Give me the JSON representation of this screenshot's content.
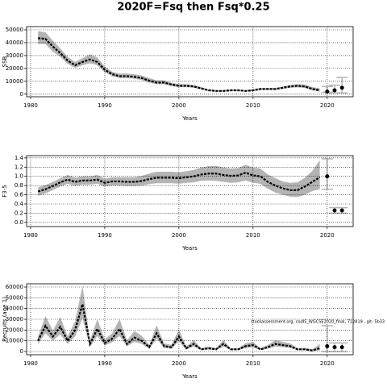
{
  "title": "2020F=Fsq then Fsq*0.25",
  "chart_data": [
    {
      "type": "line",
      "xlabel": "Years",
      "ylabel": "SSB",
      "grid": true,
      "color": "#000000",
      "band_color": "#b4b4b4",
      "xlim": [
        1979.46,
        2023.5
      ],
      "ylim": [
        -2000,
        52500
      ],
      "xticks": [
        1980,
        1990,
        2000,
        2010,
        2020
      ],
      "yticks": [
        0,
        10000,
        20000,
        30000,
        40000,
        50000
      ],
      "x": [
        1981,
        1982,
        1983,
        1984,
        1985,
        1986,
        1987,
        1988,
        1989,
        1990,
        1991,
        1992,
        1993,
        1994,
        1995,
        1996,
        1997,
        1998,
        1999,
        2000,
        2001,
        2002,
        2003,
        2004,
        2005,
        2006,
        2007,
        2008,
        2009,
        2010,
        2011,
        2012,
        2013,
        2014,
        2015,
        2016,
        2017,
        2018,
        2019
      ],
      "values": [
        43500,
        43000,
        37000,
        32000,
        26000,
        22500,
        25000,
        27000,
        25000,
        19000,
        15500,
        14000,
        14000,
        13500,
        12500,
        10500,
        9000,
        9000,
        7500,
        6500,
        6500,
        6000,
        4500,
        3000,
        2500,
        2500,
        3000,
        3000,
        2500,
        3000,
        4000,
        4000,
        4000,
        5000,
        6000,
        6500,
        6000,
        4000,
        3000
      ],
      "lower": [
        39000,
        39000,
        33000,
        29000,
        23500,
        20500,
        22500,
        24000,
        22500,
        17000,
        14000,
        12500,
        12500,
        12000,
        11000,
        9000,
        7700,
        7700,
        6300,
        5400,
        5400,
        5000,
        3700,
        2400,
        2000,
        2000,
        2400,
        2400,
        2000,
        2400,
        3300,
        3300,
        3300,
        4100,
        5000,
        5300,
        4800,
        3000,
        2000
      ],
      "upper": [
        49000,
        48000,
        41500,
        35500,
        29000,
        25000,
        28000,
        31000,
        28500,
        21500,
        17500,
        16000,
        16000,
        15500,
        14500,
        12500,
        10800,
        10800,
        9000,
        7800,
        7800,
        7200,
        5500,
        3700,
        3100,
        3100,
        3700,
        3700,
        3100,
        3700,
        4900,
        4900,
        4900,
        6000,
        7200,
        7900,
        7500,
        5500,
        4500
      ],
      "forecast": {
        "x": [
          2020,
          2021,
          2022
        ],
        "values": [
          2000,
          3000,
          5000
        ],
        "lower": [
          1500,
          1000,
          1000
        ],
        "upper": [
          6000,
          7000,
          13000
        ]
      }
    },
    {
      "type": "line",
      "xlabel": "Years",
      "ylabel": "F3-5",
      "grid": true,
      "color": "#000000",
      "band_color": "#b4b4b4",
      "xlim": [
        1979.46,
        2023.5
      ],
      "ylim": [
        -0.09,
        1.45
      ],
      "xticks": [
        1980,
        1990,
        2000,
        2010,
        2020
      ],
      "yticks": [
        {
          "value": 0,
          "label": "0.0"
        },
        0.2,
        0.4,
        0.6,
        0.8,
        {
          "value": 1,
          "label": "1.0"
        },
        1.2,
        1.4
      ],
      "x": [
        1981,
        1982,
        1983,
        1984,
        1985,
        1986,
        1987,
        1988,
        1989,
        1990,
        1991,
        1992,
        1993,
        1994,
        1995,
        1996,
        1997,
        1998,
        1999,
        2000,
        2001,
        2002,
        2003,
        2004,
        2005,
        2006,
        2007,
        2008,
        2009,
        2010,
        2011,
        2012,
        2013,
        2014,
        2015,
        2016,
        2017,
        2018,
        2019
      ],
      "values": [
        0.67,
        0.72,
        0.79,
        0.87,
        0.93,
        0.88,
        0.91,
        0.91,
        0.93,
        0.86,
        0.89,
        0.89,
        0.88,
        0.88,
        0.9,
        0.94,
        0.97,
        0.97,
        0.97,
        0.96,
        0.98,
        1.0,
        1.04,
        1.06,
        1.06,
        1.03,
        1.01,
        1.02,
        1.08,
        1.02,
        1.0,
        0.88,
        0.8,
        0.74,
        0.7,
        0.7,
        0.78,
        0.88,
        0.98
      ],
      "lower": [
        0.58,
        0.63,
        0.7,
        0.78,
        0.84,
        0.79,
        0.82,
        0.82,
        0.84,
        0.78,
        0.8,
        0.8,
        0.79,
        0.79,
        0.8,
        0.83,
        0.85,
        0.85,
        0.85,
        0.84,
        0.86,
        0.87,
        0.9,
        0.91,
        0.9,
        0.88,
        0.86,
        0.87,
        0.91,
        0.86,
        0.84,
        0.73,
        0.65,
        0.6,
        0.56,
        0.55,
        0.6,
        0.68,
        0.72
      ],
      "upper": [
        0.76,
        0.81,
        0.88,
        0.96,
        1.03,
        0.97,
        1.0,
        1.0,
        1.03,
        0.95,
        0.98,
        0.98,
        0.98,
        0.98,
        1.01,
        1.06,
        1.1,
        1.1,
        1.1,
        1.09,
        1.11,
        1.14,
        1.19,
        1.22,
        1.23,
        1.19,
        1.17,
        1.18,
        1.25,
        1.19,
        1.17,
        1.04,
        0.96,
        0.89,
        0.86,
        0.87,
        0.97,
        1.12,
        1.35
      ],
      "forecast": {
        "x": [
          2020,
          2021,
          2022
        ],
        "values": [
          1.0,
          0.26,
          0.26
        ],
        "lower": [
          0.72,
          0.2,
          0.2
        ],
        "upper": [
          1.38,
          0.32,
          0.32
        ]
      }
    },
    {
      "type": "line",
      "xlabel": "Years",
      "ylabel": "Recruits (age 1)",
      "grid": true,
      "color": "#000000",
      "band_color": "#b4b4b4",
      "annotation": "stockassessment.org, codIS_WGCSE2020_final, 712819 , git: 5b33",
      "xlim": [
        1979.46,
        2023.5
      ],
      "ylim": [
        -3000,
        63000
      ],
      "xticks": [
        1980,
        1990,
        2000,
        2010,
        2020
      ],
      "yticks": [
        0,
        10000,
        20000,
        30000,
        40000,
        50000,
        60000
      ],
      "x": [
        1981,
        1982,
        1983,
        1984,
        1985,
        1986,
        1987,
        1988,
        1989,
        1990,
        1991,
        1992,
        1993,
        1994,
        1995,
        1996,
        1997,
        1998,
        1999,
        2000,
        2001,
        2002,
        2003,
        2004,
        2005,
        2006,
        2007,
        2008,
        2009,
        2010,
        2011,
        2012,
        2013,
        2014,
        2015,
        2016,
        2017,
        2018,
        2019
      ],
      "values": [
        10000,
        24000,
        14000,
        23000,
        10000,
        20000,
        44000,
        7000,
        21000,
        8000,
        12000,
        21000,
        7000,
        13000,
        10000,
        4000,
        17000,
        5000,
        4000,
        14000,
        3000,
        7000,
        2000,
        3000,
        2000,
        7000,
        2000,
        2000,
        5000,
        6000,
        2000,
        4000,
        7000,
        6000,
        5000,
        2000,
        2000,
        1000,
        3000
      ],
      "lower": [
        7000,
        17000,
        10000,
        16000,
        7000,
        14000,
        31000,
        4500,
        14500,
        5500,
        8500,
        14500,
        4700,
        9000,
        7000,
        2600,
        12000,
        3300,
        2600,
        9500,
        1900,
        4700,
        1300,
        1900,
        1300,
        4700,
        1300,
        1300,
        3300,
        4000,
        1300,
        2600,
        4700,
        4000,
        3300,
        1200,
        1100,
        500,
        1000
      ],
      "upper": [
        14000,
        33000,
        19500,
        32000,
        14000,
        28000,
        61000,
        10500,
        30000,
        11500,
        17000,
        30000,
        10500,
        19000,
        14500,
        6200,
        24500,
        7600,
        6200,
        20500,
        4700,
        10500,
        3100,
        4700,
        3100,
        10500,
        3100,
        3100,
        7600,
        9000,
        3100,
        6200,
        10500,
        9000,
        7600,
        3300,
        3500,
        2000,
        7000
      ],
      "forecast": {
        "x": [
          2020,
          2021,
          2022
        ],
        "values": [
          5000,
          4000,
          4000
        ],
        "lower": [
          0,
          0,
          0
        ],
        "upper": [
          24000,
          8000,
          8000
        ]
      }
    }
  ]
}
